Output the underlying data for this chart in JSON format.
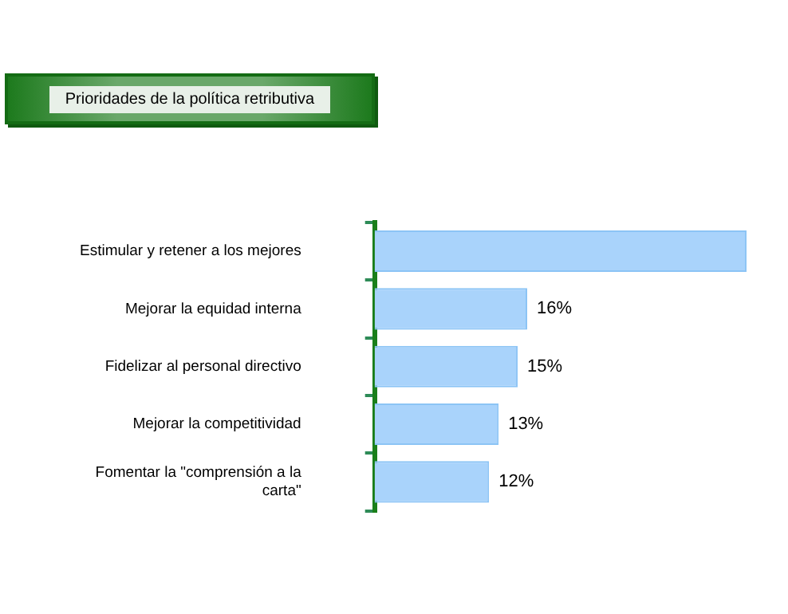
{
  "chart_data": {
    "type": "bar",
    "orientation": "horizontal",
    "title": "Prioridades de la política retributiva",
    "categories": [
      "Estimular y retener a los mejores",
      "Mejorar la equidad interna",
      "Fidelizar al personal directivo",
      "Mejorar la competitividad",
      "Fomentar la \"comprensión a la carta\""
    ],
    "values": [
      39,
      16,
      15,
      13,
      12
    ],
    "value_labels": [
      null,
      "16%",
      "15%",
      "13%",
      "12%"
    ],
    "color": "#a9d3fb",
    "tick_labels": "y",
    "legend": false
  }
}
